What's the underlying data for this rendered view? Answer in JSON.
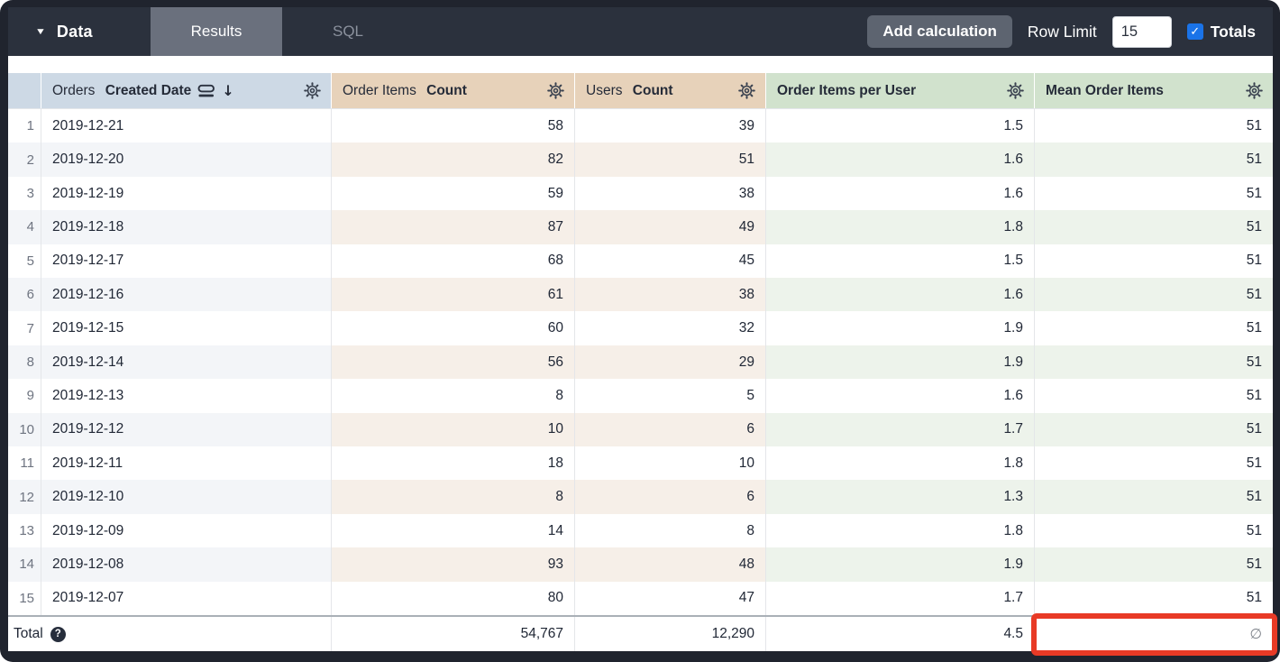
{
  "toolbar": {
    "data_label": "Data",
    "tabs": [
      {
        "label": "Results",
        "active": true
      },
      {
        "label": "SQL",
        "active": false
      }
    ],
    "add_calculation_label": "Add calculation",
    "row_limit_label": "Row Limit",
    "row_limit_value": "15",
    "totals_label": "Totals",
    "totals_checked": true,
    "checkmark_glyph": "✓",
    "caret_glyph": "▼"
  },
  "table": {
    "columns": [
      {
        "label_regular": "Orders",
        "label_bold": "Created Date",
        "group": "dimension",
        "sorted_desc": true
      },
      {
        "label_regular": "Order Items",
        "label_bold": "Count",
        "group": "measure"
      },
      {
        "label_regular": "Users",
        "label_bold": "Count",
        "group": "measure"
      },
      {
        "label_regular": "",
        "label_bold": "Order Items per User",
        "group": "calc"
      },
      {
        "label_regular": "",
        "label_bold": "Mean Order Items",
        "group": "calc"
      }
    ],
    "sort_arrow_glyph": "↓",
    "rows": [
      {
        "index": "1",
        "date": "2019-12-21",
        "order_items_count": "58",
        "users_count": "39",
        "order_items_per_user": "1.5",
        "mean_order_items": "51"
      },
      {
        "index": "2",
        "date": "2019-12-20",
        "order_items_count": "82",
        "users_count": "51",
        "order_items_per_user": "1.6",
        "mean_order_items": "51"
      },
      {
        "index": "3",
        "date": "2019-12-19",
        "order_items_count": "59",
        "users_count": "38",
        "order_items_per_user": "1.6",
        "mean_order_items": "51"
      },
      {
        "index": "4",
        "date": "2019-12-18",
        "order_items_count": "87",
        "users_count": "49",
        "order_items_per_user": "1.8",
        "mean_order_items": "51"
      },
      {
        "index": "5",
        "date": "2019-12-17",
        "order_items_count": "68",
        "users_count": "45",
        "order_items_per_user": "1.5",
        "mean_order_items": "51"
      },
      {
        "index": "6",
        "date": "2019-12-16",
        "order_items_count": "61",
        "users_count": "38",
        "order_items_per_user": "1.6",
        "mean_order_items": "51"
      },
      {
        "index": "7",
        "date": "2019-12-15",
        "order_items_count": "60",
        "users_count": "32",
        "order_items_per_user": "1.9",
        "mean_order_items": "51"
      },
      {
        "index": "8",
        "date": "2019-12-14",
        "order_items_count": "56",
        "users_count": "29",
        "order_items_per_user": "1.9",
        "mean_order_items": "51"
      },
      {
        "index": "9",
        "date": "2019-12-13",
        "order_items_count": "8",
        "users_count": "5",
        "order_items_per_user": "1.6",
        "mean_order_items": "51"
      },
      {
        "index": "10",
        "date": "2019-12-12",
        "order_items_count": "10",
        "users_count": "6",
        "order_items_per_user": "1.7",
        "mean_order_items": "51"
      },
      {
        "index": "11",
        "date": "2019-12-11",
        "order_items_count": "18",
        "users_count": "10",
        "order_items_per_user": "1.8",
        "mean_order_items": "51"
      },
      {
        "index": "12",
        "date": "2019-12-10",
        "order_items_count": "8",
        "users_count": "6",
        "order_items_per_user": "1.3",
        "mean_order_items": "51"
      },
      {
        "index": "13",
        "date": "2019-12-09",
        "order_items_count": "14",
        "users_count": "8",
        "order_items_per_user": "1.8",
        "mean_order_items": "51"
      },
      {
        "index": "14",
        "date": "2019-12-08",
        "order_items_count": "93",
        "users_count": "48",
        "order_items_per_user": "1.9",
        "mean_order_items": "51"
      },
      {
        "index": "15",
        "date": "2019-12-07",
        "order_items_count": "80",
        "users_count": "47",
        "order_items_per_user": "1.7",
        "mean_order_items": "51"
      }
    ],
    "total": {
      "label": "Total",
      "help_glyph": "?",
      "order_items_count": "54,767",
      "users_count": "12,290",
      "order_items_per_user": "4.5",
      "mean_order_items": "∅"
    }
  },
  "annotation": {
    "target": "mean-order-items-total-cell",
    "highlight_color": "#e83a26"
  },
  "colors": {
    "topbar_bg": "#2b313d",
    "active_tab_bg": "#6a707d",
    "checkbox_blue": "#1a73e8",
    "header_dimension_bg": "#cdd9e5",
    "header_measure_bg": "#e7d2ba",
    "header_calc_bg": "#d1e2cd",
    "stripe_gray": "#f3f5f8",
    "stripe_tan": "#f6efe8",
    "stripe_green": "#edf3eb"
  }
}
